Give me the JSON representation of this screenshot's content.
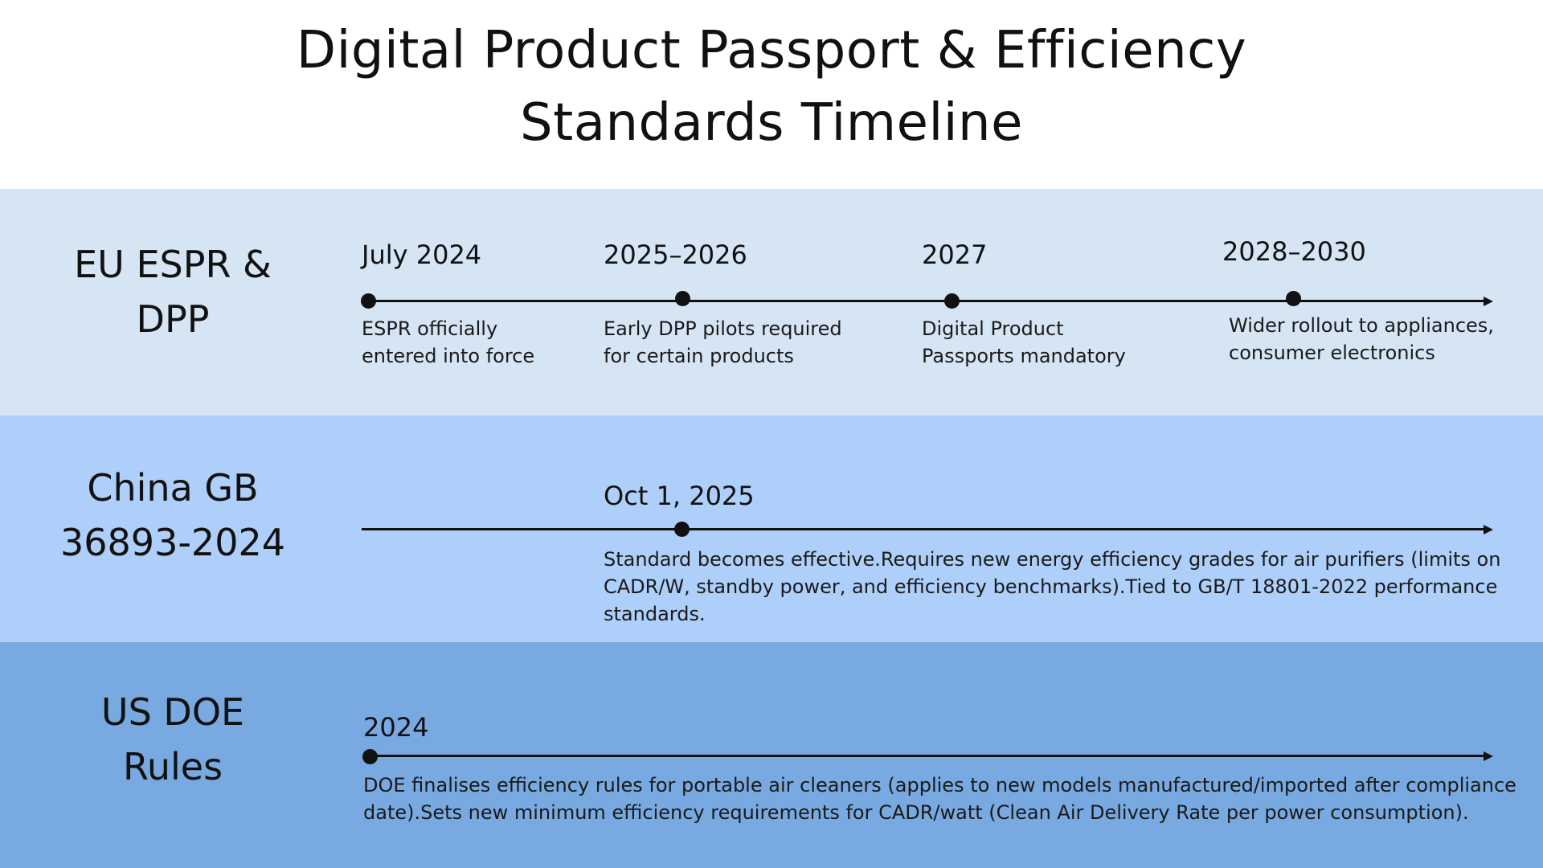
{
  "title": {
    "line1": "Digital Product Passport & Efficiency",
    "line2": "Standards Timeline"
  },
  "colors": {
    "background": "#ffffff",
    "band_eu": "#d5e5f4",
    "band_china": "#aecff9",
    "band_us": "#78a9e0",
    "line": "#111111"
  },
  "rows": [
    {
      "label_line1": "EU ESPR &",
      "label_line2": "DPP",
      "events": [
        {
          "date": "July 2024",
          "desc_line1": "ESPR officially",
          "desc_line2": "entered into force"
        },
        {
          "date": "2025–2026",
          "desc_line1": "Early DPP pilots required",
          "desc_line2": "for certain products"
        },
        {
          "date": "2027",
          "desc_line1": "Digital Product",
          "desc_line2": "Passports mandatory"
        },
        {
          "date": "2028–2030",
          "desc_line1": "Wider rollout to appliances,",
          "desc_line2": "consumer electronics"
        }
      ]
    },
    {
      "label_line1": "China GB",
      "label_line2": "36893-2024",
      "events": [
        {
          "date": "Oct 1, 2025",
          "desc_line1": "Standard becomes effective.Requires new energy efficiency grades for air purifiers (limits on",
          "desc_line2": "CADR/W, standby power, and efficiency benchmarks).Tied to GB/T 18801-2022 performance",
          "desc_line3": "standards."
        }
      ]
    },
    {
      "label_line1": "US DOE",
      "label_line2": "Rules",
      "events": [
        {
          "date": "2024",
          "desc_line1": "DOE finalises efficiency rules for portable air cleaners (applies to new models manufactured/imported after compliance",
          "desc_line2": "date).Sets new minimum efficiency requirements for CADR/watt (Clean Air Delivery Rate per power consumption)."
        }
      ]
    }
  ]
}
